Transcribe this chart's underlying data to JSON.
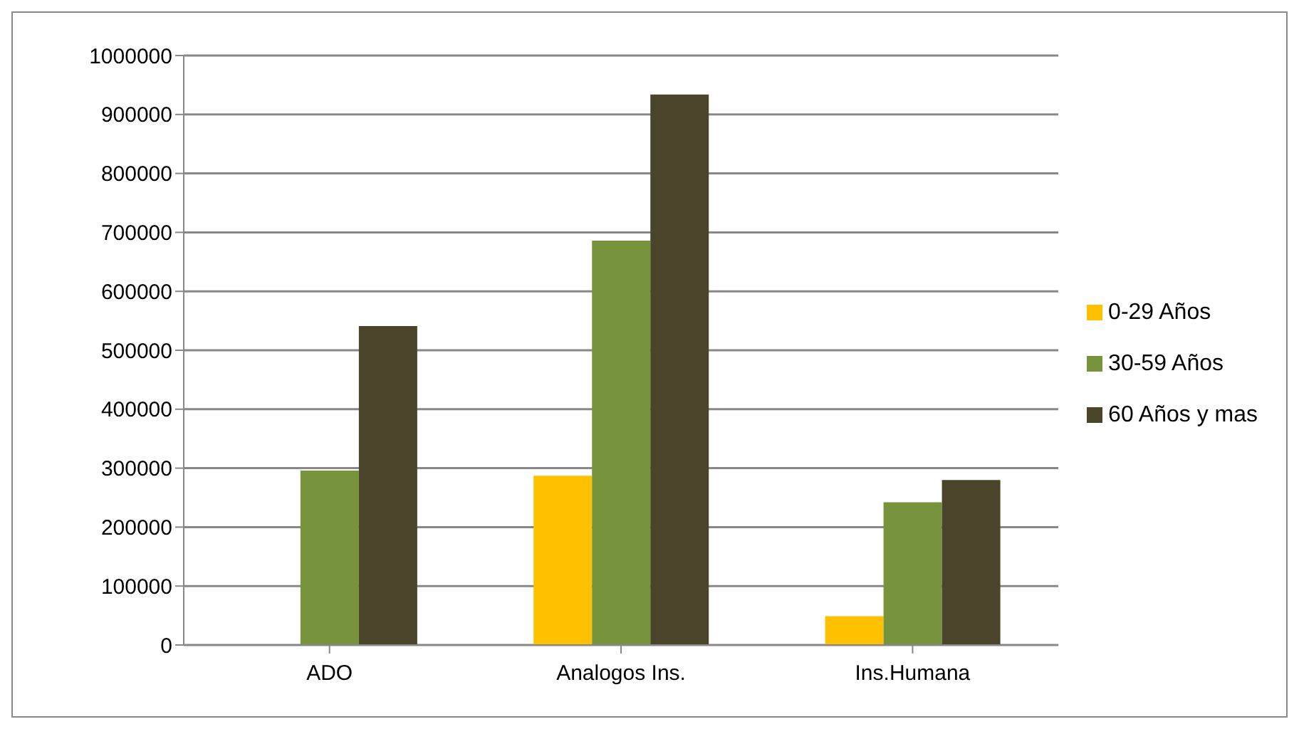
{
  "chart_data": {
    "type": "bar",
    "categories": [
      "ADO",
      "Analogos Ins.",
      "Ins.Humana"
    ],
    "series": [
      {
        "name": "0-29 Años",
        "color": "#ffc000",
        "values": [
          0,
          287000,
          49000
        ]
      },
      {
        "name": "30-59 Años",
        "color": "#77933c",
        "values": [
          296000,
          686000,
          242000
        ]
      },
      {
        "name": "60 Años y mas",
        "color": "#4a452a",
        "values": [
          541000,
          934000,
          280000
        ]
      }
    ],
    "ylim": [
      0,
      1000000
    ],
    "yticks": [
      0,
      100000,
      200000,
      300000,
      400000,
      500000,
      600000,
      700000,
      800000,
      900000,
      1000000
    ],
    "grid": "y",
    "legend": "right"
  }
}
